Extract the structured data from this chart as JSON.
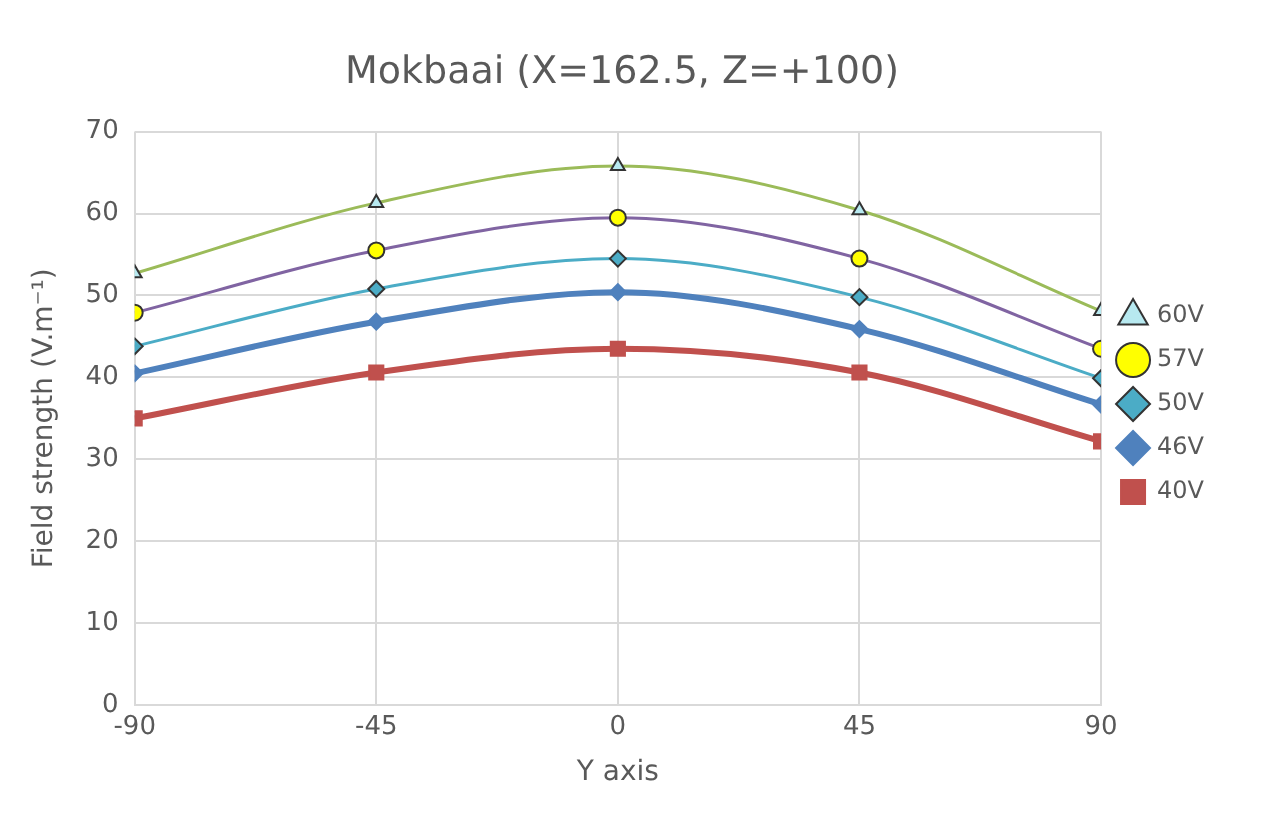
{
  "chart_data": {
    "type": "line",
    "title": "Mokbaai (X=162.5, Z=+100)",
    "xlabel": "Y axis",
    "ylabel": "Field strength (V.m⁻¹)",
    "x": [
      -90,
      -45,
      0,
      45,
      90
    ],
    "xlim": [
      -90,
      90
    ],
    "xticks": [
      -90,
      -45,
      0,
      45,
      90
    ],
    "ylim": [
      0,
      70
    ],
    "yticks": [
      0,
      10,
      20,
      30,
      40,
      50,
      60,
      70
    ],
    "grid": true,
    "legend": "right",
    "series": [
      {
        "name": "60V",
        "color": "#9bbb59",
        "marker": "triangle",
        "values": [
          52.7,
          61.3,
          65.8,
          60.4,
          48.1
        ]
      },
      {
        "name": "57V",
        "color": "#8064a2",
        "marker": "circle",
        "values": [
          47.9,
          55.5,
          59.5,
          54.5,
          43.5
        ]
      },
      {
        "name": "50V",
        "color": "#4bacc6",
        "marker": "diamond",
        "values": [
          43.8,
          50.8,
          54.5,
          49.8,
          39.9
        ]
      },
      {
        "name": "46V",
        "color": "#4f81bd",
        "marker": "diamond",
        "values": [
          40.5,
          46.8,
          50.4,
          45.9,
          36.7
        ]
      },
      {
        "name": "40V",
        "color": "#c0504d",
        "marker": "square",
        "values": [
          35,
          40.6,
          43.5,
          40.6,
          32.2
        ]
      }
    ]
  }
}
